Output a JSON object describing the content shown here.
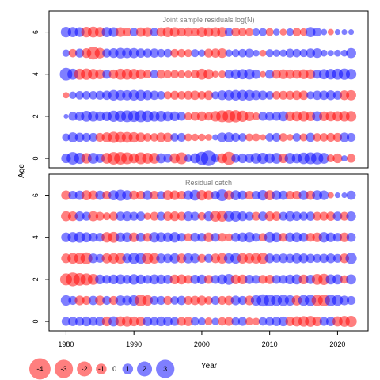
{
  "chart_data": {
    "type": "scatter",
    "ylabel": "Age",
    "xlabel": "Year",
    "x_ticks": [
      1980,
      1990,
      2000,
      2010,
      2020
    ],
    "y_ticks": [
      0,
      2,
      4,
      6
    ],
    "xlim": [
      1977.5,
      2024.5
    ],
    "ylim": [
      -0.45,
      7.0
    ],
    "colors": {
      "positive": "#0000ff",
      "negative": "#ff0000"
    },
    "legend": {
      "placement": "bottom-left",
      "values": [
        -4,
        -3,
        -2,
        -1,
        0,
        1,
        2,
        3
      ],
      "labels": [
        "-4",
        "-3",
        "-2",
        "-1",
        "0",
        "1",
        "2",
        "3"
      ]
    },
    "panels": [
      {
        "title": "Joint sample residuals log(N)",
        "ages": [
          0,
          1,
          2,
          3,
          4,
          5,
          6
        ],
        "years": [
          1980,
          1981,
          1982,
          1983,
          1984,
          1985,
          1986,
          1987,
          1988,
          1989,
          1990,
          1991,
          1992,
          1993,
          1994,
          1995,
          1996,
          1997,
          1998,
          1999,
          2000,
          2001,
          2002,
          2003,
          2004,
          2005,
          2006,
          2007,
          2008,
          2009,
          2010,
          2011,
          2012,
          2013,
          2014,
          2015,
          2016,
          2017,
          2018,
          2019,
          2020,
          2021,
          2022
        ],
        "residuals": [
          [
            1.2,
            2.0,
            1.6,
            -1.4,
            1.5,
            1.1,
            -1.5,
            -2.0,
            -2.0,
            -1.8,
            -1.3,
            -1.8,
            -1.5,
            -1.5,
            1.3,
            1.0,
            -1.3,
            -1.8,
            0.8,
            1.3,
            2.2,
            3.0,
            0.9,
            -1.3,
            -2.2,
            1.0,
            1.2,
            1.1,
            1.5,
            1.6,
            1.3,
            1.5,
            -1.2,
            1.5,
            1.3,
            1.7,
            1.8,
            1.9,
            1.5,
            -0.8,
            -1.2,
            0.5,
            -1.0
          ],
          [
            0.8,
            1.3,
            1.1,
            1.0,
            1.0,
            -1.0,
            -1.3,
            -1.6,
            -1.5,
            -1.5,
            -1.4,
            -1.2,
            -0.9,
            -0.9,
            -1.2,
            -1.1,
            0.9,
            1.0,
            -0.8,
            -0.7,
            -0.7,
            -0.6,
            0.5,
            1.2,
            1.3,
            1.0,
            0.9,
            -0.8,
            -0.8,
            -0.5,
            0.9,
            1.0,
            -0.9,
            -0.6,
            0.9,
            -0.8,
            1.1,
            -0.9,
            -0.9,
            -1.0,
            -1.0,
            1.2,
            1.0
          ],
          [
            0.3,
            1.0,
            1.1,
            1.5,
            1.4,
            1.2,
            1.2,
            1.6,
            1.6,
            1.8,
            1.7,
            1.8,
            1.7,
            1.4,
            1.5,
            1.3,
            1.2,
            1.0,
            -0.8,
            -1.0,
            -1.2,
            -0.9,
            -1.4,
            -1.8,
            -2.0,
            -1.9,
            -1.6,
            -1.2,
            -0.8,
            1.0,
            1.0,
            1.0,
            1.3,
            -1.2,
            -1.3,
            -1.4,
            -1.2,
            1.3,
            -1.2,
            -1.3,
            -1.3,
            -1.4,
            -1.4
          ],
          [
            -0.5,
            0.7,
            0.9,
            0.9,
            0.9,
            1.0,
            1.1,
            1.4,
            1.3,
            1.3,
            1.4,
            1.4,
            1.2,
            1.1,
            0.9,
            -0.8,
            -1.0,
            -0.9,
            -1.0,
            -1.1,
            -0.9,
            -1.1,
            0.8,
            1.2,
            1.3,
            1.4,
            1.4,
            1.4,
            1.2,
            1.1,
            0.9,
            -0.9,
            -1.0,
            -1.0,
            -1.1,
            -1.1,
            0.8,
            1.1,
            1.1,
            1.2,
            1.0,
            -1.2,
            -1.3
          ],
          [
            2.0,
            1.5,
            -1.5,
            -1.6,
            -1.4,
            -1.2,
            1.0,
            -1.1,
            -1.5,
            -1.5,
            -1.4,
            -1.2,
            -0.9,
            0.9,
            -1.0,
            -0.8,
            -0.9,
            -0.8,
            -0.7,
            -0.9,
            -1.5,
            -1.3,
            -0.6,
            -0.7,
            1.0,
            1.2,
            1.3,
            1.4,
            1.1,
            -0.5,
            1.0,
            -1.0,
            -1.2,
            -1.1,
            -1.0,
            -1.2,
            -1.2,
            1.0,
            1.3,
            1.4,
            1.5,
            1.6,
            1.4
          ],
          [
            0.7,
            -0.9,
            1.0,
            -1.2,
            -2.1,
            -1.4,
            1.0,
            1.2,
            1.4,
            1.3,
            1.3,
            1.1,
            1.0,
            1.1,
            0.9,
            0.9,
            -0.9,
            -0.9,
            -0.8,
            0.8,
            0.7,
            -1.0,
            -1.1,
            -1.2,
            0.7,
            0.8,
            0.9,
            1.0,
            0.6,
            -0.6,
            0.8,
            0.7,
            0.7,
            1.0,
            0.9,
            0.8,
            1.1,
            1.2,
            0.6,
            0.5,
            0.6,
            0.6,
            1.3
          ],
          [
            1.4,
            1.3,
            1.2,
            -1.4,
            -1.5,
            -1.3,
            1.3,
            1.2,
            -1.2,
            -1.0,
            0.9,
            -1.1,
            -1.2,
            0.9,
            -1.1,
            -1.3,
            -1.2,
            -1.0,
            -1.1,
            -0.9,
            -1.3,
            -1.1,
            -1.2,
            -1.3,
            0.9,
            -1.0,
            -0.9,
            -0.8,
            0.7,
            0.8,
            -0.8,
            0.6,
            -0.6,
            0.7,
            -0.9,
            -0.7,
            1.3,
            1.0,
            0.5,
            -0.5,
            0.4,
            0.4,
            0.4
          ]
        ]
      },
      {
        "title": "Residual catch",
        "ages": [
          0,
          1,
          2,
          3,
          4,
          5,
          6
        ],
        "years": [
          1980,
          1981,
          1982,
          1983,
          1984,
          1985,
          1986,
          1987,
          1988,
          1989,
          1990,
          1991,
          1992,
          1993,
          1994,
          1995,
          1996,
          1997,
          1998,
          1999,
          2000,
          2001,
          2002,
          2003,
          2004,
          2005,
          2006,
          2007,
          2008,
          2009,
          2010,
          2011,
          2012,
          2013,
          2014,
          2015,
          2016,
          2017,
          2018,
          2019,
          2020,
          2021,
          2022
        ],
        "residuals": [
          [
            1.0,
            1.1,
            1.0,
            1.2,
            1.0,
            1.1,
            -1.2,
            1.3,
            -1.3,
            -1.4,
            -1.2,
            -1.1,
            1.1,
            1.0,
            1.2,
            1.1,
            1.0,
            -1.0,
            -1.1,
            0.9,
            0.8,
            -0.8,
            0.7,
            -0.9,
            -1.0,
            0.9,
            1.0,
            -0.8,
            -0.7,
            0.9,
            1.0,
            1.1,
            1.2,
            -1.1,
            -1.3,
            -1.4,
            -1.5,
            -1.2,
            1.0,
            1.1,
            -1.3,
            -1.5,
            -1.6
          ],
          [
            1.4,
            1.0,
            -1.2,
            -1.0,
            1.1,
            -1.2,
            1.0,
            -1.0,
            1.3,
            1.2,
            1.4,
            -1.8,
            -1.4,
            1.0,
            1.0,
            -1.0,
            0.9,
            1.1,
            -1.0,
            -1.1,
            -1.2,
            -0.9,
            1.0,
            -1.0,
            -1.1,
            1.2,
            1.0,
            -1.2,
            1.4,
            1.9,
            1.8,
            1.5,
            1.6,
            1.4,
            -1.3,
            1.5,
            1.6,
            -1.6,
            -1.8,
            1.7,
            1.5,
            1.2,
            1.0
          ],
          [
            -1.8,
            -2.4,
            -2.0,
            -1.8,
            -1.5,
            1.2,
            1.0,
            1.2,
            1.3,
            1.1,
            1.4,
            1.2,
            1.0,
            1.3,
            1.2,
            1.1,
            -1.2,
            -1.3,
            -1.0,
            1.1,
            1.2,
            -1.0,
            1.0,
            1.3,
            1.5,
            -1.2,
            -1.2,
            1.1,
            1.0,
            -1.0,
            -1.1,
            1.0,
            1.0,
            1.2,
            1.3,
            -1.2,
            1.1,
            -1.5,
            -1.6,
            1.3,
            1.3,
            -0.9,
            1.3
          ],
          [
            -1.2,
            -1.5,
            -1.6,
            -1.8,
            1.2,
            1.0,
            -1.3,
            -1.4,
            -1.5,
            1.2,
            1.6,
            1.5,
            -1.6,
            -1.4,
            1.2,
            1.1,
            1.3,
            -1.2,
            1.3,
            1.2,
            -1.0,
            1.0,
            -1.2,
            -1.4,
            1.3,
            1.5,
            -1.4,
            -1.3,
            -1.4,
            -1.6,
            1.2,
            1.0,
            1.2,
            1.1,
            1.3,
            1.2,
            1.1,
            1.0,
            1.1,
            1.2,
            1.0,
            -1.2,
            1.6
          ],
          [
            1.2,
            1.4,
            1.5,
            1.3,
            1.1,
            1.0,
            -1.4,
            -1.5,
            1.2,
            1.3,
            -1.2,
            1.1,
            -1.0,
            1.4,
            1.3,
            1.2,
            1.4,
            1.0,
            -0.9,
            1.1,
            1.0,
            -1.2,
            1.0,
            -1.0,
            -0.8,
            1.1,
            1.2,
            1.4,
            1.0,
            -0.9,
            1.5,
            1.3,
            -1.0,
            1.2,
            1.3,
            1.1,
            -1.0,
            -1.2,
            1.4,
            1.2,
            1.0,
            -1.2,
            1.1
          ],
          [
            -1.3,
            -1.2,
            1.2,
            1.0,
            -1.3,
            -1.0,
            -0.8,
            -1.0,
            1.1,
            1.2,
            1.0,
            1.1,
            -0.7,
            -1.0,
            1.0,
            -1.1,
            -1.2,
            -1.0,
            1.2,
            1.0,
            -0.9,
            1.2,
            -1.5,
            -1.5,
            1.4,
            1.5,
            1.2,
            1.0,
            -1.0,
            1.1,
            -1.2,
            -1.1,
            1.0,
            1.3,
            1.1,
            1.0,
            1.1,
            -1.0,
            -1.0,
            -1.1,
            1.1,
            -1.0,
            1.2
          ],
          [
            -1.2,
            1.0,
            1.1,
            -1.3,
            -1.2,
            1.1,
            -1.0,
            1.3,
            1.6,
            1.3,
            -1.1,
            -1.0,
            1.2,
            -1.0,
            0.9,
            -1.3,
            -1.2,
            -1.0,
            1.2,
            1.5,
            -1.4,
            -1.2,
            1.0,
            1.8,
            -1.2,
            1.3,
            1.1,
            -1.0,
            1.0,
            1.4,
            -1.3,
            1.2,
            1.1,
            -1.0,
            -1.0,
            1.2,
            -1.1,
            1.3,
            1.2,
            -0.5,
            0.4,
            0.4,
            1.1
          ]
        ]
      }
    ]
  }
}
